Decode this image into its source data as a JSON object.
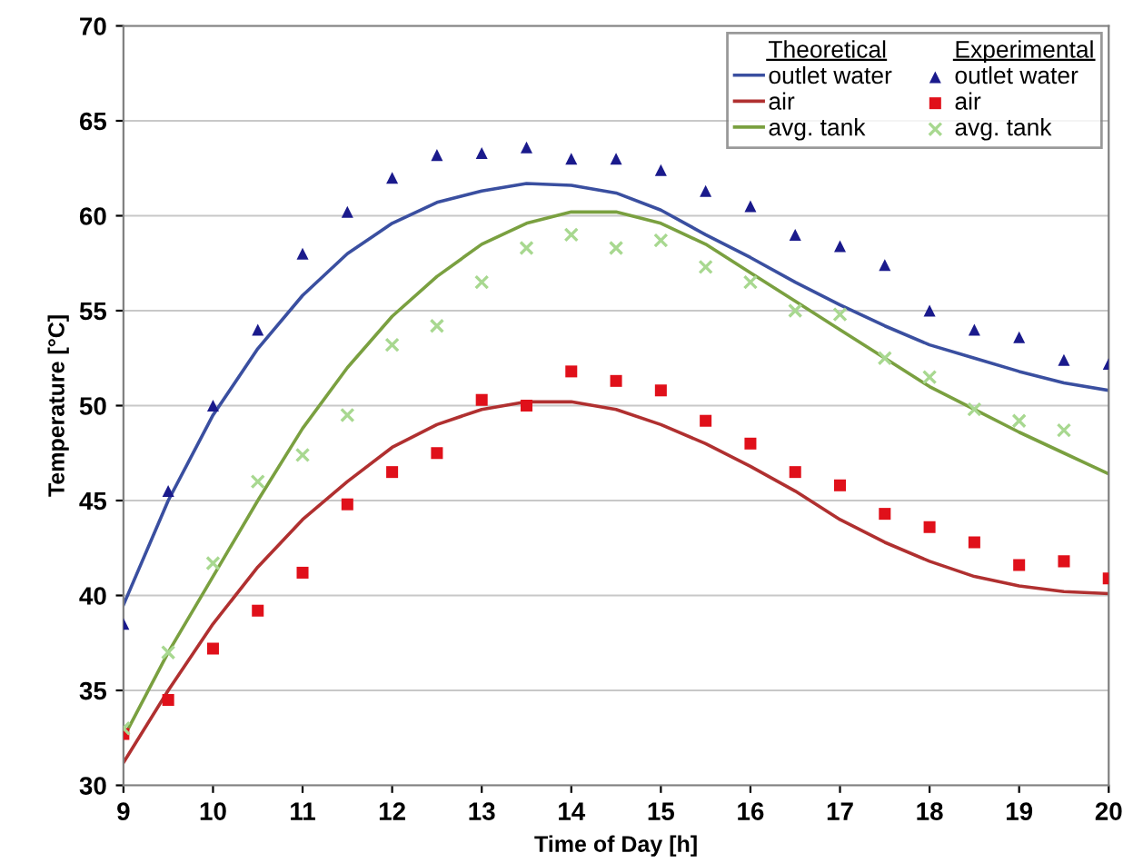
{
  "chart_data": {
    "type": "line",
    "xlabel": "Time of Day [h]",
    "ylabel": "Temperature [°C]",
    "x": [
      9,
      9.5,
      10,
      10.5,
      11,
      11.5,
      12,
      12.5,
      13,
      13.5,
      14,
      14.5,
      15,
      15.5,
      16,
      16.5,
      17,
      17.5,
      18,
      18.5,
      19,
      19.5,
      20
    ],
    "xlim": [
      9,
      20
    ],
    "xticks": [
      9,
      10,
      11,
      12,
      13,
      14,
      15,
      16,
      17,
      18,
      19,
      20
    ],
    "ylim": [
      30,
      70
    ],
    "yticks": [
      30,
      35,
      40,
      45,
      50,
      55,
      60,
      65,
      70
    ],
    "grid": "y",
    "legend": "top right",
    "annotations": [
      "Theoretical",
      "Experimental"
    ],
    "series": [
      {
        "name": "outlet water",
        "marker": "none",
        "color": "#3a4fa0",
        "values": [
          39.5,
          45,
          49.5,
          53,
          55.8,
          58,
          59.6,
          60.7,
          61.3,
          61.7,
          61.6,
          61.2,
          60.3,
          59,
          57.8,
          56.5,
          55.3,
          54.2,
          53.2,
          52.5,
          51.8,
          51.2,
          50.8
        ]
      },
      {
        "name": "air",
        "marker": "none",
        "color": "#b03030",
        "values": [
          31.2,
          35,
          38.5,
          41.5,
          44,
          46,
          47.8,
          49,
          49.8,
          50.2,
          50.2,
          49.8,
          49,
          48,
          46.8,
          45.5,
          44,
          42.8,
          41.8,
          41,
          40.5,
          40.2,
          40.1
        ]
      },
      {
        "name": "avg. tank",
        "marker": "none",
        "color": "#7aa040",
        "values": [
          32.5,
          37,
          41,
          45,
          48.8,
          52,
          54.7,
          56.8,
          58.5,
          59.6,
          60.2,
          60.2,
          59.6,
          58.5,
          57,
          55.5,
          54,
          52.5,
          51,
          49.8,
          48.6,
          47.5,
          46.4
        ]
      },
      {
        "name": "outlet water",
        "type": "scatter",
        "marker": "triangle",
        "color": "#1a1a8c",
        "values": [
          38.5,
          45.5,
          50,
          54,
          58,
          60.2,
          62,
          63.2,
          63.3,
          63.6,
          63,
          63,
          62.4,
          61.3,
          60.5,
          59,
          58.4,
          57.4,
          55,
          54,
          53.6,
          52.4,
          52.2
        ]
      },
      {
        "name": "air",
        "type": "scatter",
        "marker": "square",
        "color": "#e0101a",
        "values": [
          32.7,
          34.5,
          37.2,
          39.2,
          41.2,
          44.8,
          46.5,
          47.5,
          50.3,
          50,
          51.8,
          51.3,
          50.8,
          49.2,
          48,
          46.5,
          45.8,
          44.3,
          43.6,
          42.8,
          41.6,
          41.8,
          40.9
        ]
      },
      {
        "name": "avg. tank",
        "type": "scatter",
        "marker": "cross",
        "color": "#a8d890",
        "values": [
          33,
          37,
          41.7,
          46,
          47.4,
          49.5,
          53.2,
          54.2,
          56.5,
          58.3,
          59,
          58.3,
          58.7,
          57.3,
          56.5,
          55,
          54.8,
          52.5,
          51.5,
          49.8,
          49.2,
          48.7,
          null
        ]
      }
    ]
  }
}
